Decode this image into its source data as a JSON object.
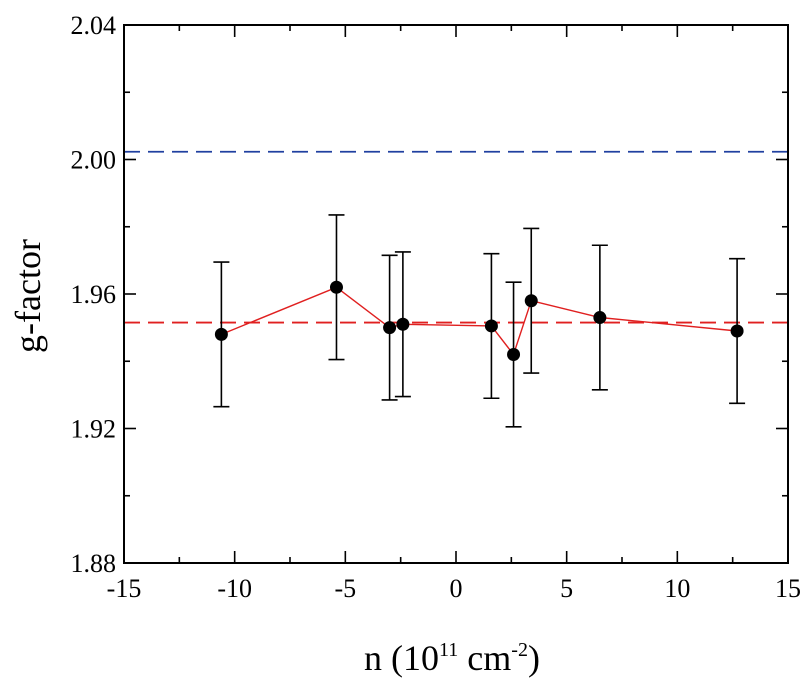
{
  "chart_data": {
    "type": "scatter",
    "title": "",
    "xlabel_main": "n (10",
    "xlabel_sup1": "11",
    "xlabel_mid": " cm",
    "xlabel_sup2": "-2",
    "xlabel_end": ")",
    "ylabel": "g-factor",
    "xlim": [
      -15,
      15
    ],
    "ylim": [
      1.88,
      2.04
    ],
    "xticks": [
      -15,
      -10,
      -5,
      0,
      5,
      10,
      15
    ],
    "xtick_labels": [
      "-15",
      "-10",
      "-5",
      "0",
      "5",
      "10",
      "15"
    ],
    "yticks": [
      1.88,
      1.92,
      1.96,
      2.0,
      2.04
    ],
    "ytick_labels": [
      "1.88",
      "1.92",
      "1.96",
      "2.00",
      "2.04"
    ],
    "grid": false,
    "series": [
      {
        "x": [
          -10.6,
          -5.4,
          -3.0,
          -2.4,
          1.6,
          2.6,
          3.4,
          6.5,
          12.7
        ],
        "y": [
          1.948,
          1.962,
          1.95,
          1.951,
          1.9505,
          1.942,
          1.958,
          1.953,
          1.949
        ],
        "yerr": [
          0.0215,
          0.0215,
          0.0215,
          0.0215,
          0.0215,
          0.0215,
          0.0215,
          0.0215,
          0.0215
        ],
        "marker_color": "#000000",
        "line_color": "#e02020"
      }
    ],
    "reference_lines": [
      {
        "y": 2.0023,
        "color": "#2040a0",
        "style": "dashed"
      },
      {
        "y": 1.9515,
        "color": "#e02020",
        "style": "dashed"
      }
    ]
  }
}
